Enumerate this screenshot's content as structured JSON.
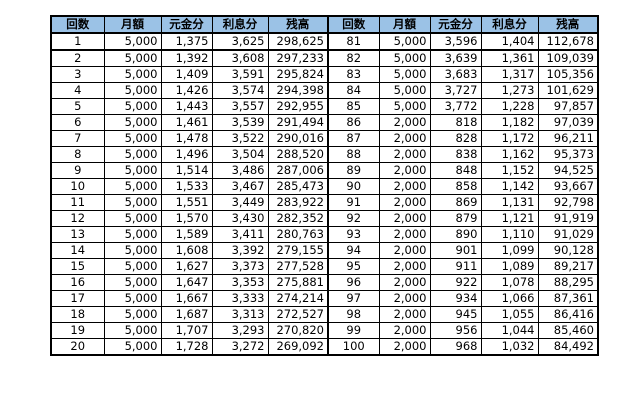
{
  "colors": {
    "header_bg": "#9bc2e6",
    "grid": "#000000"
  },
  "table": {
    "headers": [
      "回数",
      "月額",
      "元金分",
      "利息分",
      "残高",
      "回数",
      "月額",
      "元金分",
      "利息分",
      "残高"
    ],
    "rows": [
      [
        "1",
        "5,000",
        "1,375",
        "3,625",
        "298,625",
        "81",
        "5,000",
        "3,596",
        "1,404",
        "112,678"
      ],
      [
        "2",
        "5,000",
        "1,392",
        "3,608",
        "297,233",
        "82",
        "5,000",
        "3,639",
        "1,361",
        "109,039"
      ],
      [
        "3",
        "5,000",
        "1,409",
        "3,591",
        "295,824",
        "83",
        "5,000",
        "3,683",
        "1,317",
        "105,356"
      ],
      [
        "4",
        "5,000",
        "1,426",
        "3,574",
        "294,398",
        "84",
        "5,000",
        "3,727",
        "1,273",
        "101,629"
      ],
      [
        "5",
        "5,000",
        "1,443",
        "3,557",
        "292,955",
        "85",
        "5,000",
        "3,772",
        "1,228",
        "97,857"
      ],
      [
        "6",
        "5,000",
        "1,461",
        "3,539",
        "291,494",
        "86",
        "2,000",
        "818",
        "1,182",
        "97,039"
      ],
      [
        "7",
        "5,000",
        "1,478",
        "3,522",
        "290,016",
        "87",
        "2,000",
        "828",
        "1,172",
        "96,211"
      ],
      [
        "8",
        "5,000",
        "1,496",
        "3,504",
        "288,520",
        "88",
        "2,000",
        "838",
        "1,162",
        "95,373"
      ],
      [
        "9",
        "5,000",
        "1,514",
        "3,486",
        "287,006",
        "89",
        "2,000",
        "848",
        "1,152",
        "94,525"
      ],
      [
        "10",
        "5,000",
        "1,533",
        "3,467",
        "285,473",
        "90",
        "2,000",
        "858",
        "1,142",
        "93,667"
      ],
      [
        "11",
        "5,000",
        "1,551",
        "3,449",
        "283,922",
        "91",
        "2,000",
        "869",
        "1,131",
        "92,798"
      ],
      [
        "12",
        "5,000",
        "1,570",
        "3,430",
        "282,352",
        "92",
        "2,000",
        "879",
        "1,121",
        "91,919"
      ],
      [
        "13",
        "5,000",
        "1,589",
        "3,411",
        "280,763",
        "93",
        "2,000",
        "890",
        "1,110",
        "91,029"
      ],
      [
        "14",
        "5,000",
        "1,608",
        "3,392",
        "279,155",
        "94",
        "2,000",
        "901",
        "1,099",
        "90,128"
      ],
      [
        "15",
        "5,000",
        "1,627",
        "3,373",
        "277,528",
        "95",
        "2,000",
        "911",
        "1,089",
        "89,217"
      ],
      [
        "16",
        "5,000",
        "1,647",
        "3,353",
        "275,881",
        "96",
        "2,000",
        "922",
        "1,078",
        "88,295"
      ],
      [
        "17",
        "5,000",
        "1,667",
        "3,333",
        "274,214",
        "97",
        "2,000",
        "934",
        "1,066",
        "87,361"
      ],
      [
        "18",
        "5,000",
        "1,687",
        "3,313",
        "272,527",
        "98",
        "2,000",
        "945",
        "1,055",
        "86,416"
      ],
      [
        "19",
        "5,000",
        "1,707",
        "3,293",
        "270,820",
        "99",
        "2,000",
        "956",
        "1,044",
        "85,460"
      ],
      [
        "20",
        "5,000",
        "1,728",
        "3,272",
        "269,092",
        "100",
        "2,000",
        "968",
        "1,032",
        "84,492"
      ]
    ]
  }
}
